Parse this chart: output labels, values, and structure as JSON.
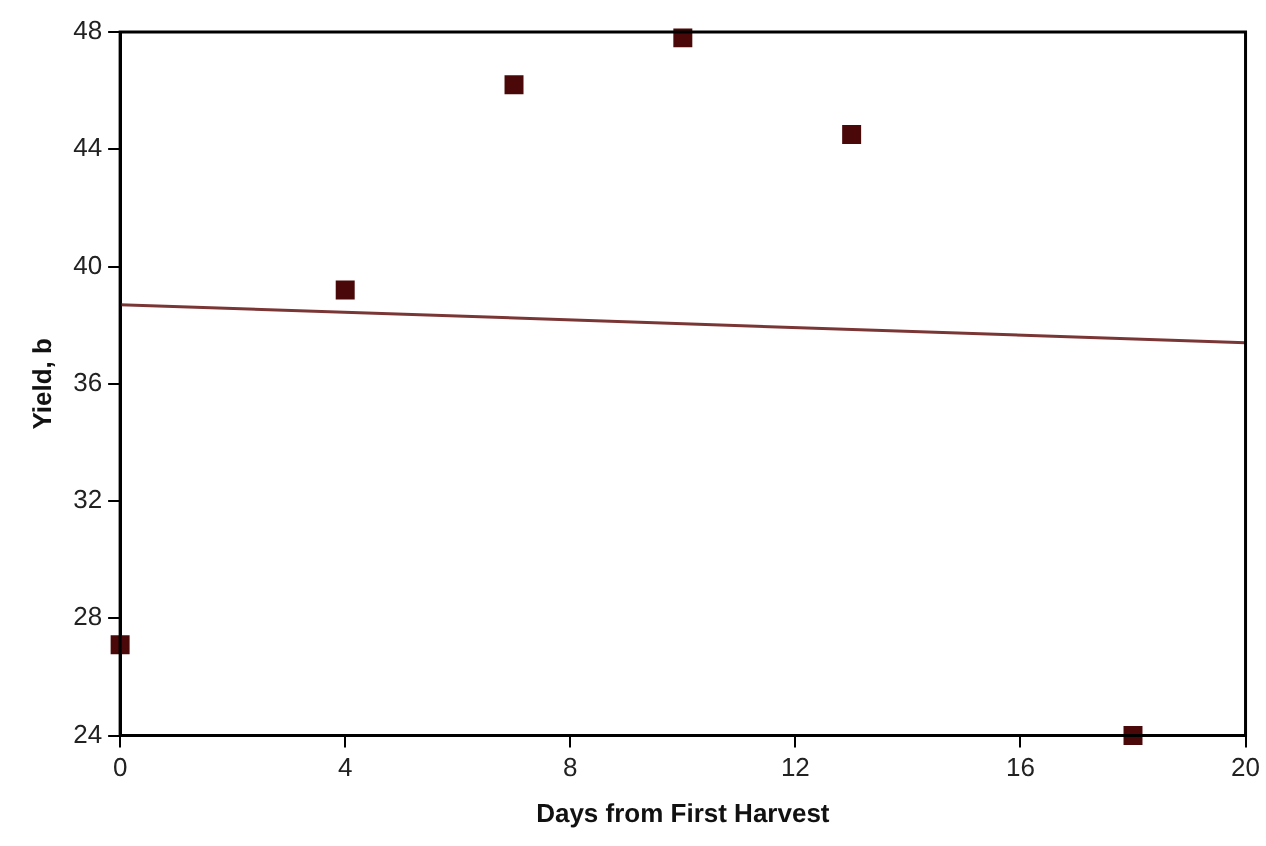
{
  "chart_data": {
    "type": "scatter",
    "xlabel": "Days from First Harvest",
    "ylabel": "Yield, b",
    "series": [
      {
        "x": [
          0,
          4,
          7,
          10,
          13,
          18
        ],
        "values": [
          27.1,
          39.2,
          46.2,
          47.8,
          44.5,
          24.0
        ],
        "color": "#4a0808",
        "marker": "square"
      },
      {
        "type": "line",
        "x": [
          0,
          20
        ],
        "values": [
          38.7,
          37.4
        ],
        "color": "#7a3535",
        "marker": "none",
        "line_style": "solid"
      }
    ],
    "xlim": [
      0,
      20
    ],
    "xticks": [
      0,
      4,
      8,
      12,
      16,
      20
    ],
    "ylim": [
      24,
      48
    ],
    "yticks": [
      24,
      28,
      32,
      36,
      40,
      44,
      48
    ],
    "grid": false,
    "legend": false
  }
}
